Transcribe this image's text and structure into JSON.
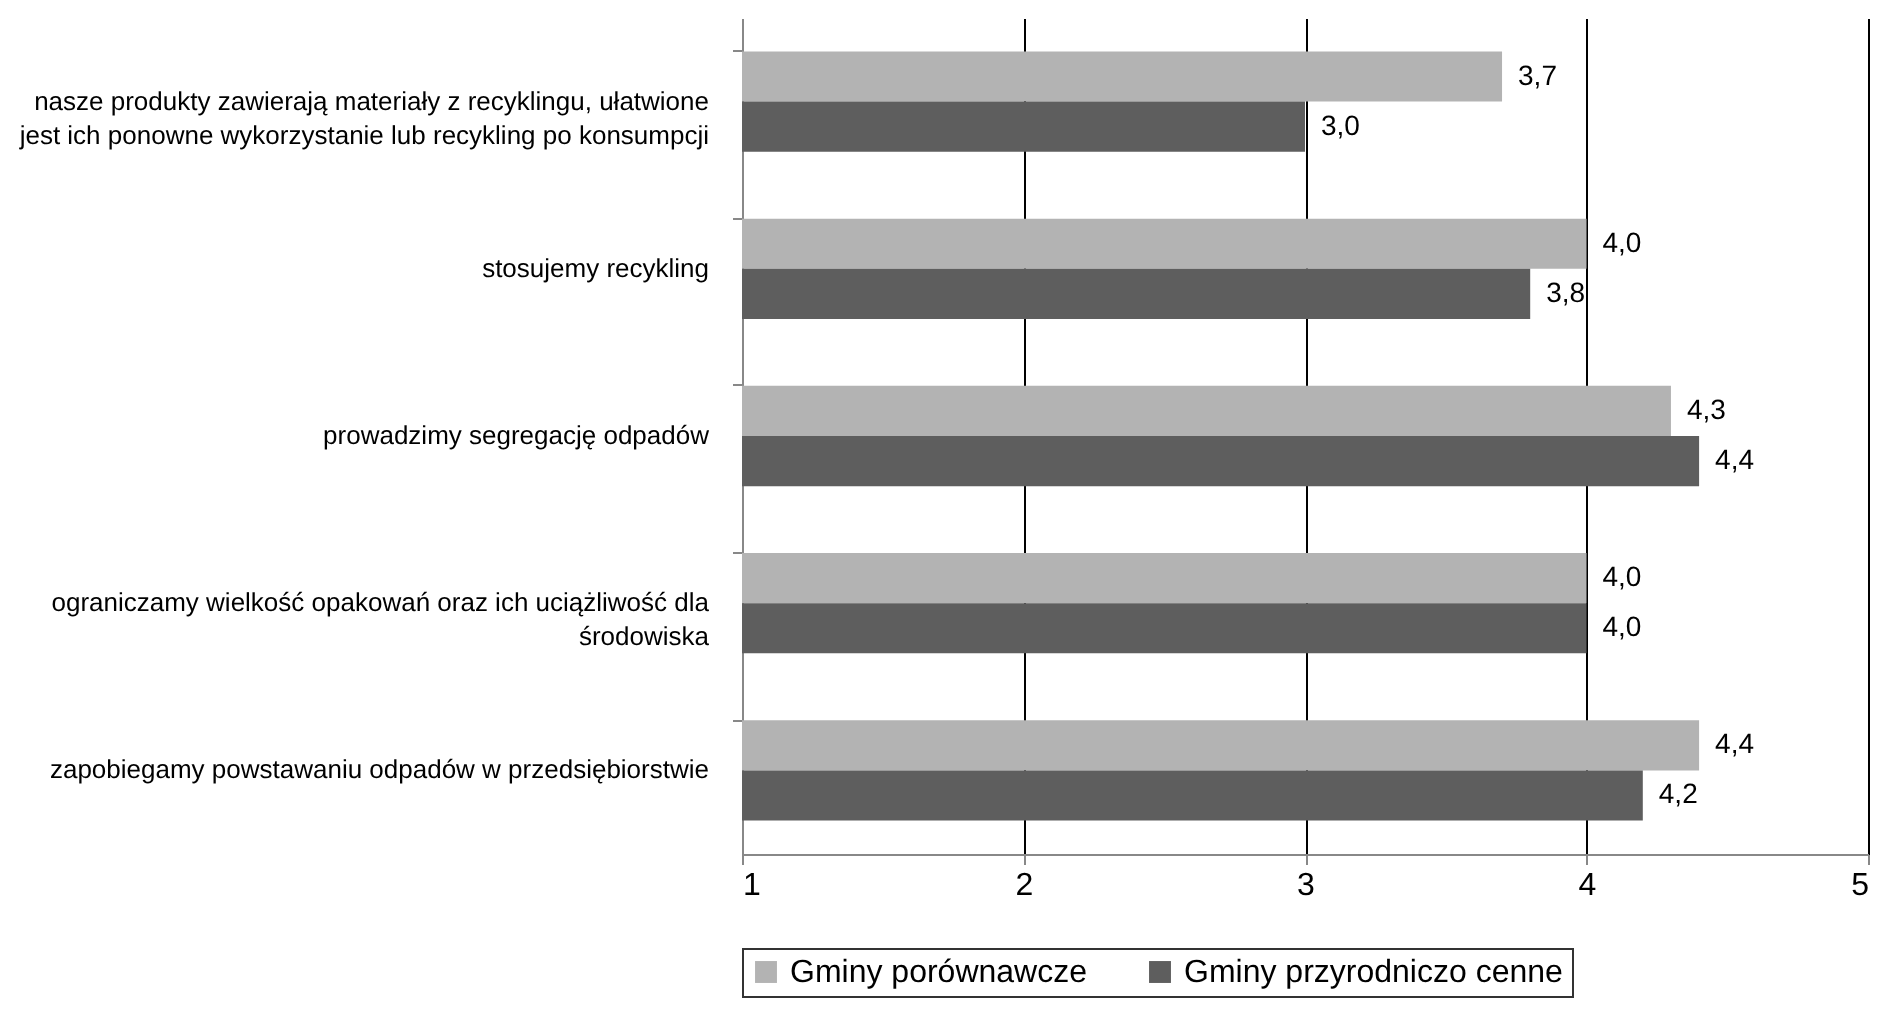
{
  "chart_data": {
    "type": "bar",
    "orientation": "horizontal",
    "categories": [
      "nasze produkty zawierają materiały z recyklingu, ułatwione jest ich ponowne wykorzystanie lub recykling po konsumpcji",
      "stosujemy recykling",
      "prowadzimy segregację odpadów",
      "ograniczamy wielkość opakowań oraz ich uciążliwość dla środowiska",
      "zapobiegamy powstawaniu odpadów w przedsiębiorstwie"
    ],
    "series": [
      {
        "name": "Gminy porównawcze",
        "color": "#b3b3b3",
        "values": [
          3.7,
          4.0,
          4.3,
          4.0,
          4.4
        ],
        "value_labels": [
          "3,7",
          "4,0",
          "4,3",
          "4,0",
          "4,4"
        ]
      },
      {
        "name": "Gminy przyrodniczo cenne",
        "color": "#5e5e5e",
        "values": [
          3.0,
          3.8,
          4.4,
          4.0,
          4.2
        ],
        "value_labels": [
          "3,0",
          "3,8",
          "4,4",
          "4,0",
          "4,2"
        ]
      }
    ],
    "xlim": [
      1,
      5
    ],
    "xticks": [
      1,
      2,
      3,
      4,
      5
    ],
    "grid": "x",
    "legend": "bottom"
  }
}
